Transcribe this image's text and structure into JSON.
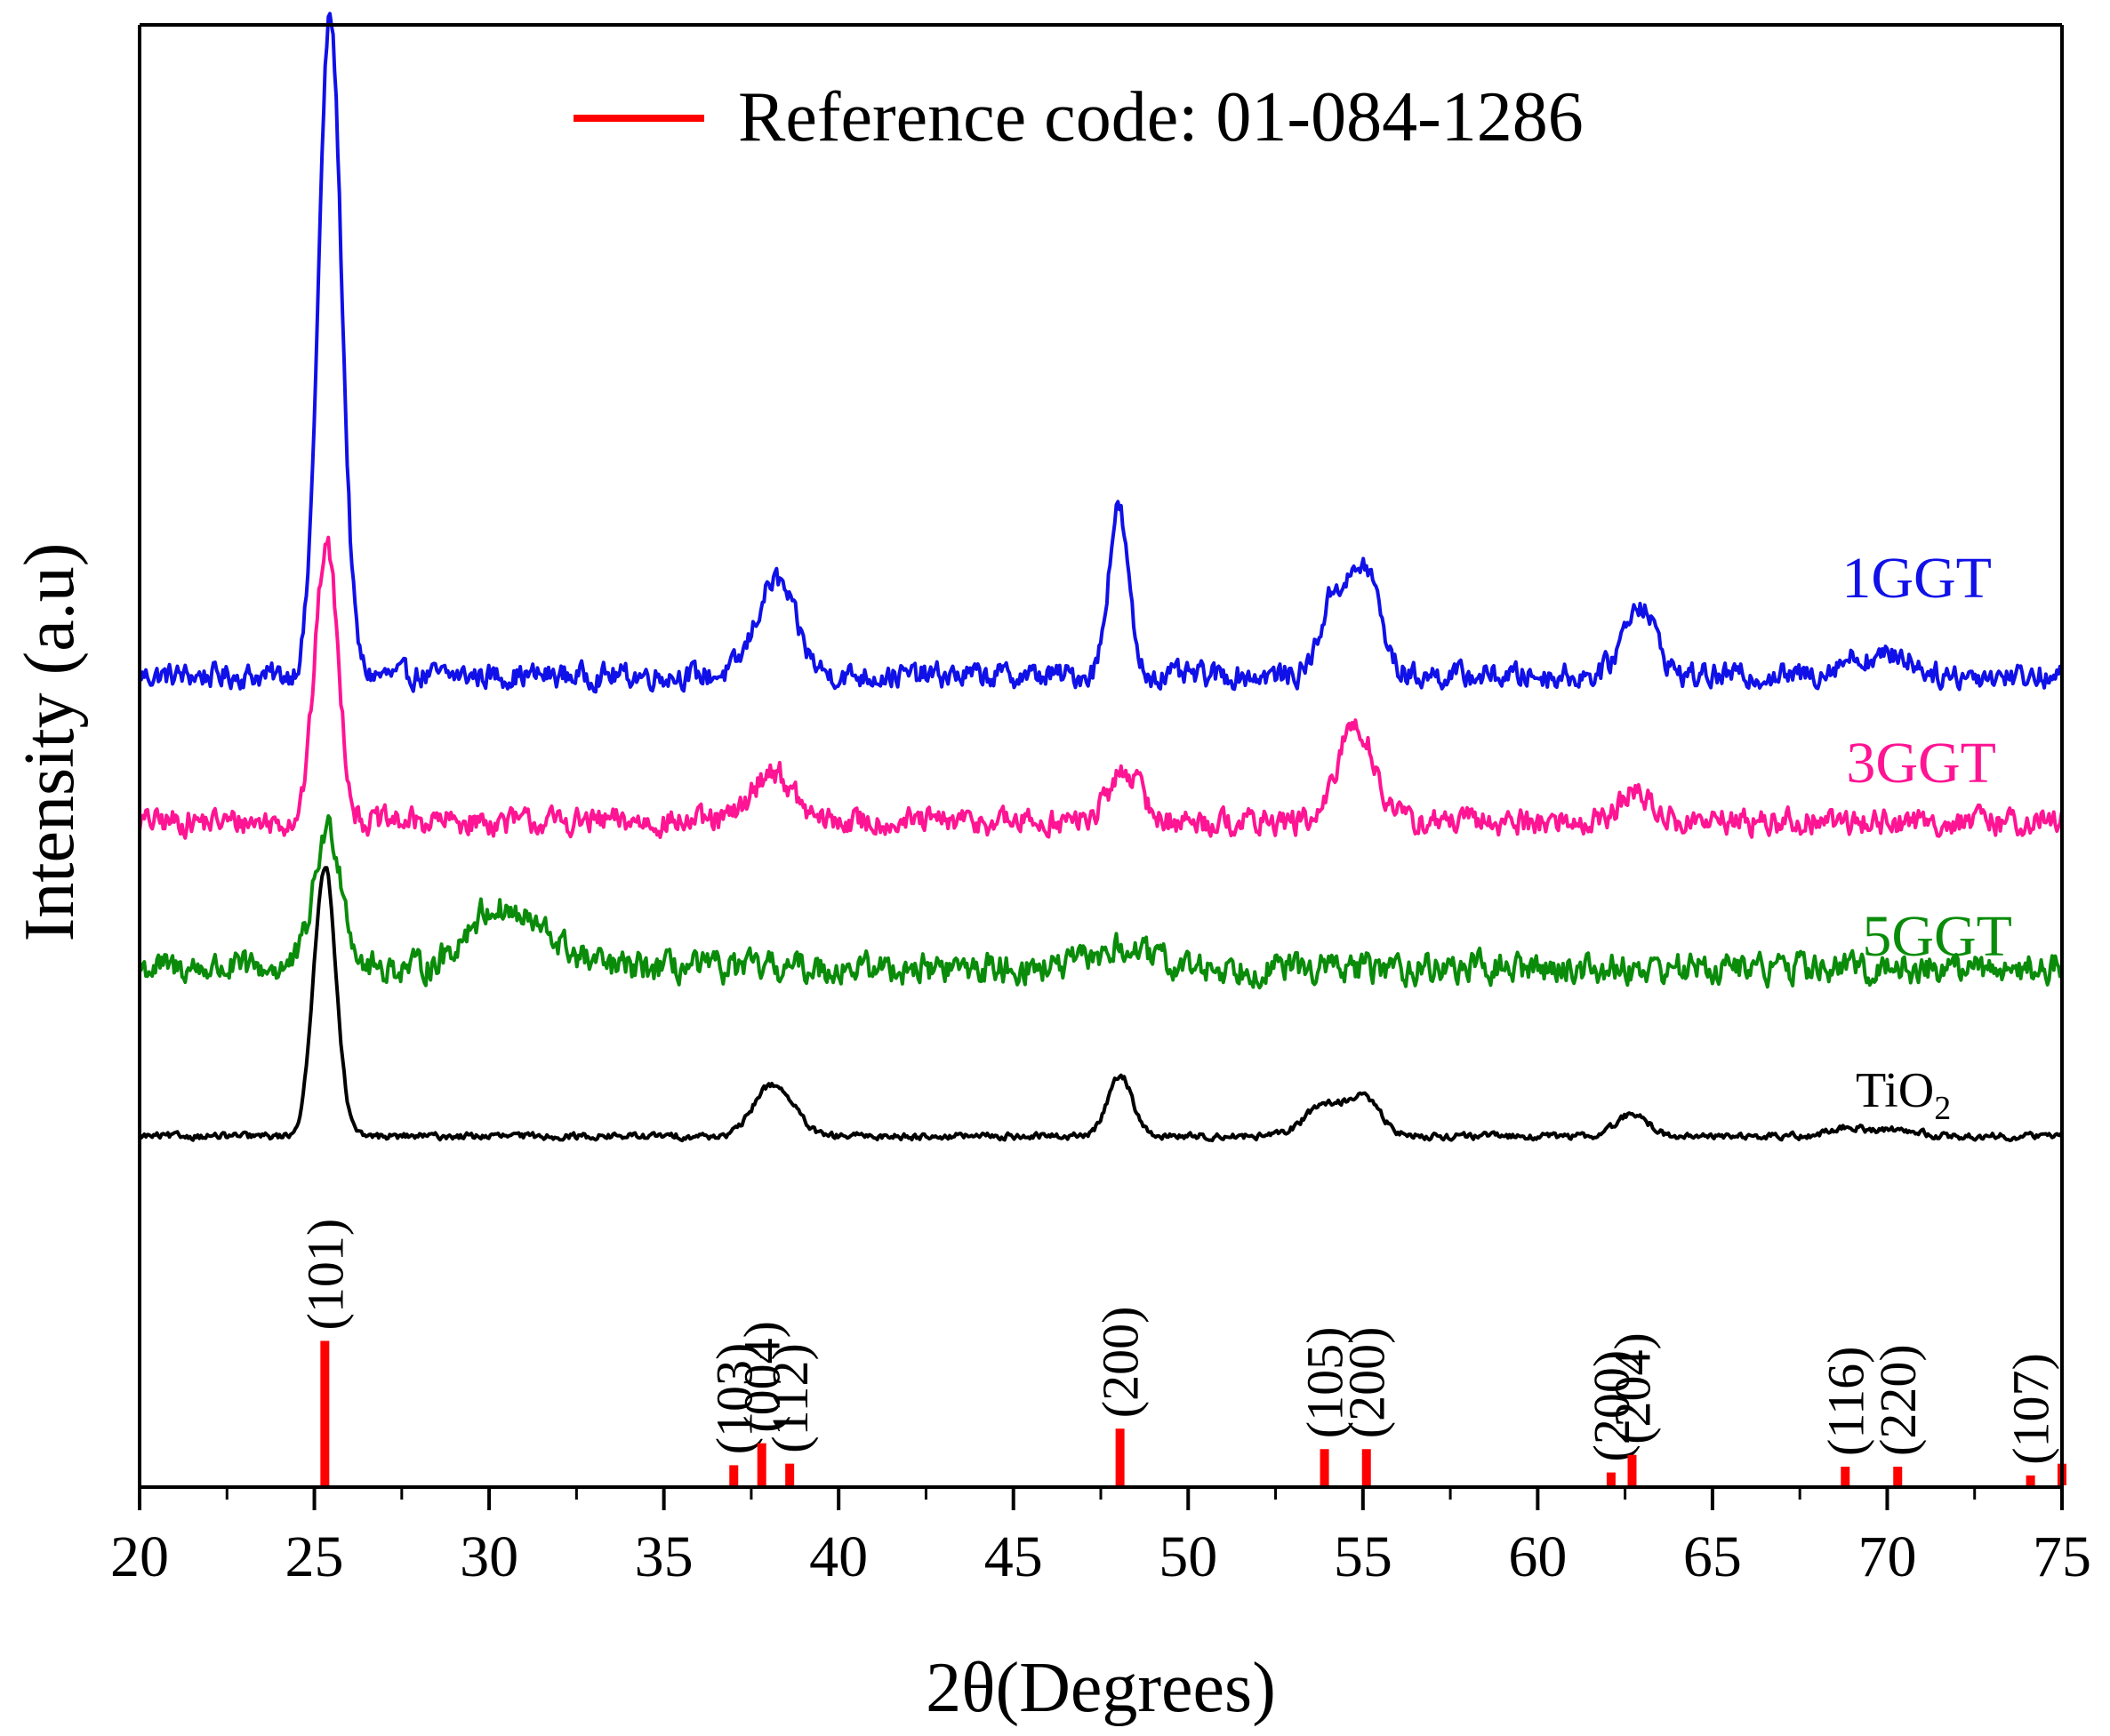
{
  "chart_data": {
    "type": "line",
    "title": "",
    "xlabel": "2θ(Degrees)",
    "ylabel": "Intensity (a.u)",
    "xlim": [
      20,
      75
    ],
    "ylim": [
      0,
      100
    ],
    "x_ticks": [
      20,
      25,
      30,
      35,
      40,
      45,
      50,
      55,
      60,
      65,
      70,
      75
    ],
    "x_tick_labels": [
      "20",
      "25",
      "30",
      "35",
      "40",
      "45",
      "50",
      "55",
      "60",
      "65",
      "70",
      "75"
    ],
    "colors": {
      "1GGT": "#1010e8",
      "3GGT": "#ff1493",
      "5GGT": "#0a8c0a",
      "TiO2": "#000000",
      "reference": "#ff0000",
      "axis": "#000000"
    },
    "legend": {
      "position": "top-center",
      "label": "Reference code: 01-084-1286"
    },
    "series": [
      {
        "name": "1GGT",
        "label": "1GGT",
        "baseline": 55.5,
        "noise": 1.3,
        "peaks": [
          [
            25.45,
            45,
            0.33
          ],
          [
            38.2,
            6.5,
            0.55
          ],
          [
            48.0,
            11.5,
            0.28
          ],
          [
            54.2,
            5.5,
            0.4
          ],
          [
            55.1,
            7,
            0.4
          ],
          [
            62.9,
            5,
            0.45
          ],
          [
            69.0,
            1.2,
            0.5
          ],
          [
            70.3,
            1.4,
            0.5
          ]
        ]
      },
      {
        "name": "3GGT",
        "label": "3GGT",
        "baseline": 45.5,
        "noise": 1.4,
        "peaks": [
          [
            25.35,
            19,
            0.33
          ],
          [
            38.1,
            3.5,
            0.55
          ],
          [
            48.2,
            3.5,
            0.45
          ],
          [
            54.6,
            4.5,
            0.4
          ],
          [
            55.1,
            3.5,
            0.45
          ],
          [
            62.8,
            2,
            0.45
          ]
        ]
      },
      {
        "name": "5GGT",
        "label": "5GGT",
        "baseline": 35.5,
        "noise": 1.6,
        "peaks": [
          [
            25.4,
            9.5,
            0.4
          ],
          [
            29.9,
            3,
            0.7
          ],
          [
            31.2,
            2.5,
            0.9
          ],
          [
            48.1,
            1.3,
            0.8
          ]
        ]
      },
      {
        "name": "TiO2",
        "label_main": "TiO",
        "label_sub": "2",
        "baseline": 24,
        "noise": 0.35,
        "peaks": [
          [
            25.3,
            18.5,
            0.32
          ],
          [
            37.95,
            3,
            0.45
          ],
          [
            38.6,
            1.5,
            0.4
          ],
          [
            48.05,
            4.2,
            0.35
          ],
          [
            53.9,
            2.2,
            0.55
          ],
          [
            55.05,
            2.5,
            0.45
          ],
          [
            62.7,
            1.5,
            0.45
          ],
          [
            68.9,
            0.6,
            0.5
          ],
          [
            70.3,
            0.5,
            0.5
          ]
        ]
      }
    ],
    "reference_peaks": [
      {
        "x": 25.3,
        "height": 10,
        "label": "(101)"
      },
      {
        "x": 37.0,
        "height": 1.5,
        "label": "(103)"
      },
      {
        "x": 37.8,
        "height": 3,
        "label": "(004)"
      },
      {
        "x": 38.6,
        "height": 1.6,
        "label": "(112)"
      },
      {
        "x": 48.05,
        "height": 4,
        "label": "(200)"
      },
      {
        "x": 53.9,
        "height": 2.6,
        "label": "(105)"
      },
      {
        "x": 55.1,
        "height": 2.6,
        "label": "(200)"
      },
      {
        "x": 62.1,
        "height": 1,
        "label": "(200)"
      },
      {
        "x": 62.7,
        "height": 2.2,
        "label": "(204)"
      },
      {
        "x": 68.8,
        "height": 1.4,
        "label": "(116)"
      },
      {
        "x": 70.3,
        "height": 1.4,
        "label": "(220)"
      },
      {
        "x": 74.1,
        "height": 0.8,
        "label": "(107)"
      },
      {
        "x": 75.0,
        "height": 1.6,
        "label": ""
      }
    ]
  }
}
